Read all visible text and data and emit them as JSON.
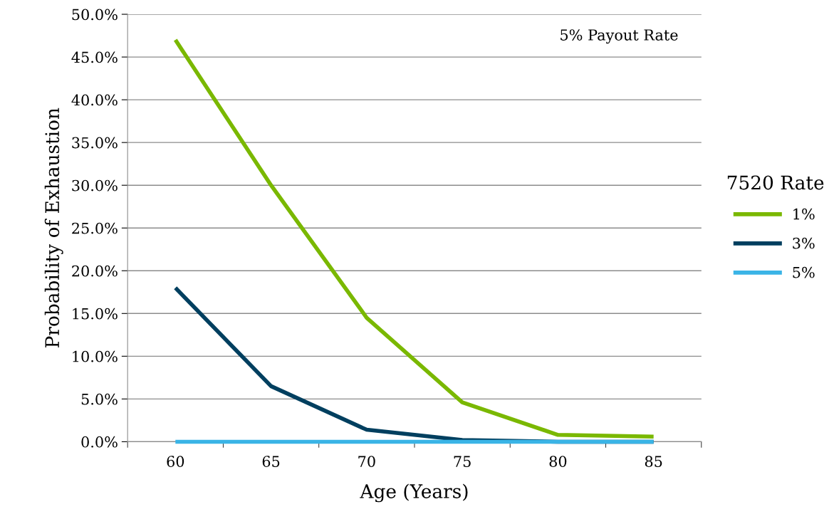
{
  "chart_data": {
    "type": "line",
    "xlabel": "Age (Years)",
    "ylabel": "Probability of Exhaustion",
    "legend_title": "7520 Rate",
    "annotations": [
      "5% Payout Rate"
    ],
    "categories": [
      "60",
      "65",
      "70",
      "75",
      "80",
      "85"
    ],
    "series": [
      {
        "name": "1%",
        "color": "#7ab800",
        "values": [
          47.0,
          30.0,
          14.5,
          4.6,
          0.8,
          0.6
        ]
      },
      {
        "name": "3%",
        "color": "#003f5f",
        "values": [
          18.0,
          6.5,
          1.4,
          0.2,
          0.0,
          0.0
        ]
      },
      {
        "name": "5%",
        "color": "#3ab4e6",
        "values": [
          0.0,
          0.0,
          0.0,
          0.0,
          0.0,
          0.0
        ]
      }
    ],
    "ylim": [
      0,
      50
    ],
    "yticks": [
      {
        "value": 0,
        "label": "0.0%"
      },
      {
        "value": 5,
        "label": "5.0%"
      },
      {
        "value": 10,
        "label": "10.0%"
      },
      {
        "value": 15,
        "label": "15.0%"
      },
      {
        "value": 20,
        "label": "20.0%"
      },
      {
        "value": 25,
        "label": "25.0%"
      },
      {
        "value": 30,
        "label": "30.0%"
      },
      {
        "value": 35,
        "label": "35.0%"
      },
      {
        "value": 40,
        "label": "40.0%"
      },
      {
        "value": 45,
        "label": "45.0%"
      },
      {
        "value": 50,
        "label": "50.0%"
      }
    ],
    "grid": "y",
    "legend": "right",
    "marker": "none",
    "line_style": "solid"
  }
}
